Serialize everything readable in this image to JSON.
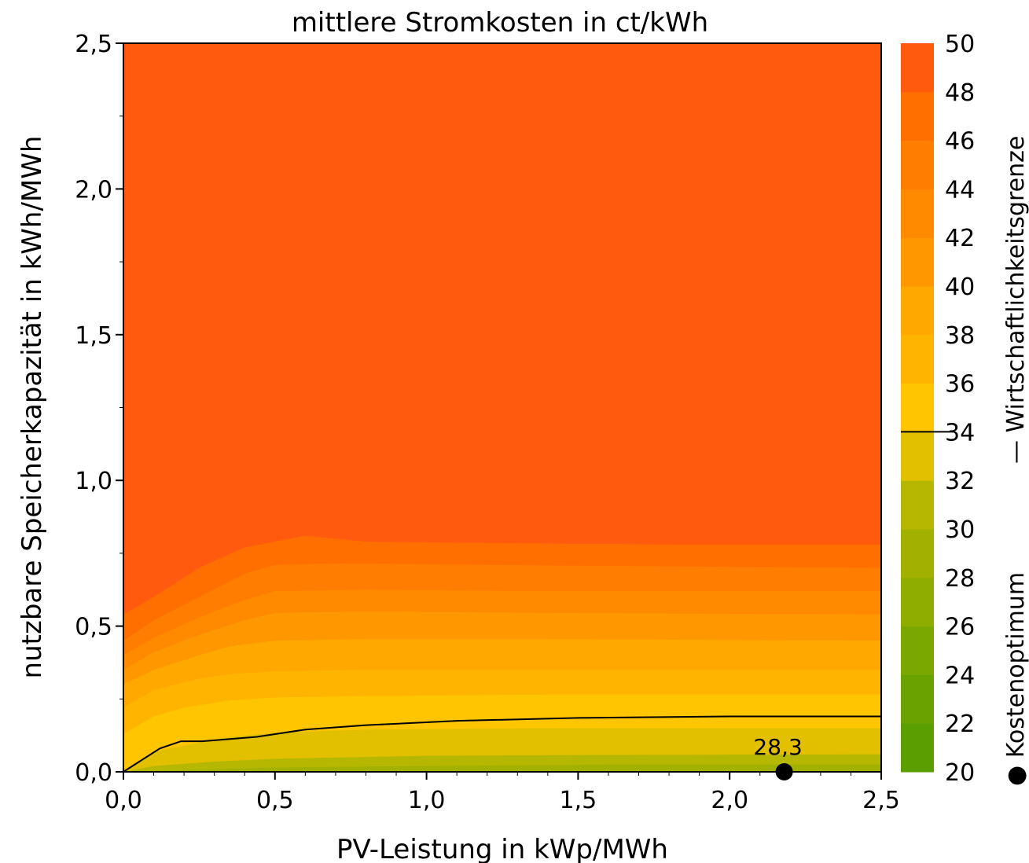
{
  "chart_data": {
    "type": "heatmap",
    "title": "mittlere Stromkosten in ct/kWh",
    "xlabel": "PV-Leistung in kWp/MWh",
    "ylabel": "nutzbare Speicherkapazität in kWh/MWh",
    "xlim": [
      0,
      2.5
    ],
    "ylim": [
      0,
      2.5
    ],
    "x_ticks": [
      "0,0",
      "0,5",
      "1,0",
      "1,5",
      "2,0",
      "2,5"
    ],
    "y_ticks": [
      "0,0",
      "0,5",
      "1,0",
      "1,5",
      "2,0",
      "2,5"
    ],
    "colorbar": {
      "range": [
        20,
        50
      ],
      "ticks": [
        "20",
        "22",
        "24",
        "26",
        "28",
        "30",
        "32",
        "34",
        "36",
        "38",
        "40",
        "42",
        "44",
        "46",
        "48",
        "50"
      ],
      "levels": [
        {
          "from": 20,
          "to": 22,
          "color": "#5a9e00"
        },
        {
          "from": 22,
          "to": 24,
          "color": "#6aa300"
        },
        {
          "from": 24,
          "to": 26,
          "color": "#7ba800"
        },
        {
          "from": 26,
          "to": 28,
          "color": "#8fad00"
        },
        {
          "from": 28,
          "to": 30,
          "color": "#a2b100"
        },
        {
          "from": 30,
          "to": 32,
          "color": "#b5b700"
        },
        {
          "from": 32,
          "to": 34,
          "color": "#e2c000"
        },
        {
          "from": 34,
          "to": 36,
          "color": "#ffc500"
        },
        {
          "from": 36,
          "to": 38,
          "color": "#ffb500"
        },
        {
          "from": 38,
          "to": 40,
          "color": "#ffa800"
        },
        {
          "from": 40,
          "to": 42,
          "color": "#ff9800"
        },
        {
          "from": 42,
          "to": 44,
          "color": "#ff8a00"
        },
        {
          "from": 44,
          "to": 46,
          "color": "#ff7d00"
        },
        {
          "from": 46,
          "to": 48,
          "color": "#ff6f00"
        },
        {
          "from": 48,
          "to": 50,
          "color": "#ff5a0e"
        }
      ],
      "boundary_value": 34
    },
    "side_labels": {
      "boundary": "— Wirtschaftlichkeitsgrenze",
      "optimum": "● Kostenoptimum"
    },
    "contours": [
      {
        "color": "#ff6f00",
        "points": [
          [
            0,
            0.54
          ],
          [
            0.1,
            0.6
          ],
          [
            0.25,
            0.7
          ],
          [
            0.4,
            0.77
          ],
          [
            0.6,
            0.81
          ],
          [
            0.8,
            0.79
          ],
          [
            1.2,
            0.785
          ],
          [
            1.8,
            0.78
          ],
          [
            2.5,
            0.78
          ]
        ]
      },
      {
        "color": "#ff7d00",
        "points": [
          [
            0,
            0.45
          ],
          [
            0.1,
            0.52
          ],
          [
            0.25,
            0.6
          ],
          [
            0.4,
            0.68
          ],
          [
            0.5,
            0.71
          ],
          [
            0.7,
            0.715
          ],
          [
            1.2,
            0.71
          ],
          [
            1.8,
            0.705
          ],
          [
            2.5,
            0.7
          ]
        ]
      },
      {
        "color": "#ff8a00",
        "points": [
          [
            0,
            0.4
          ],
          [
            0.1,
            0.46
          ],
          [
            0.25,
            0.53
          ],
          [
            0.4,
            0.59
          ],
          [
            0.5,
            0.62
          ],
          [
            0.8,
            0.625
          ],
          [
            1.4,
            0.62
          ],
          [
            2.5,
            0.62
          ]
        ]
      },
      {
        "color": "#ff9800",
        "points": [
          [
            0,
            0.35
          ],
          [
            0.1,
            0.41
          ],
          [
            0.25,
            0.47
          ],
          [
            0.4,
            0.52
          ],
          [
            0.5,
            0.545
          ],
          [
            0.8,
            0.55
          ],
          [
            1.4,
            0.545
          ],
          [
            2.5,
            0.54
          ]
        ]
      },
      {
        "color": "#ffa800",
        "points": [
          [
            0,
            0.3
          ],
          [
            0.1,
            0.35
          ],
          [
            0.25,
            0.4
          ],
          [
            0.35,
            0.43
          ],
          [
            0.5,
            0.45
          ],
          [
            0.8,
            0.455
          ],
          [
            1.4,
            0.455
          ],
          [
            2.5,
            0.45
          ]
        ]
      },
      {
        "color": "#ffb500",
        "points": [
          [
            0,
            0.22
          ],
          [
            0.1,
            0.28
          ],
          [
            0.25,
            0.32
          ],
          [
            0.35,
            0.335
          ],
          [
            0.5,
            0.345
          ],
          [
            0.8,
            0.35
          ],
          [
            1.4,
            0.35
          ],
          [
            2.5,
            0.35
          ]
        ]
      },
      {
        "color": "#ffc500",
        "points": [
          [
            0,
            0.13
          ],
          [
            0.1,
            0.19
          ],
          [
            0.2,
            0.22
          ],
          [
            0.35,
            0.245
          ],
          [
            0.5,
            0.255
          ],
          [
            0.8,
            0.26
          ],
          [
            1.4,
            0.265
          ],
          [
            2.5,
            0.265
          ]
        ]
      },
      {
        "color": "#e2c000",
        "points": [
          [
            0,
            0
          ],
          [
            0.1,
            0.07
          ],
          [
            0.2,
            0.09
          ],
          [
            0.35,
            0.12
          ],
          [
            0.5,
            0.135
          ],
          [
            0.8,
            0.145
          ],
          [
            1.4,
            0.15
          ],
          [
            2.5,
            0.15
          ]
        ]
      },
      {
        "color": "#b5b700",
        "points": [
          [
            0,
            0
          ],
          [
            0.1,
            0.02
          ],
          [
            0.3,
            0.035
          ],
          [
            0.5,
            0.045
          ],
          [
            1.0,
            0.055
          ],
          [
            1.6,
            0.058
          ],
          [
            2.5,
            0.06
          ]
        ]
      },
      {
        "color": "#a2b100",
        "points": [
          [
            0,
            0
          ],
          [
            0.5,
            0.015
          ],
          [
            1.0,
            0.02
          ],
          [
            1.6,
            0.025
          ],
          [
            2.5,
            0.025
          ]
        ]
      }
    ],
    "boundary_line": [
      [
        0,
        0
      ],
      [
        0.12,
        0.08
      ],
      [
        0.19,
        0.105
      ],
      [
        0.26,
        0.105
      ],
      [
        0.44,
        0.12
      ],
      [
        0.6,
        0.145
      ],
      [
        0.8,
        0.16
      ],
      [
        1.1,
        0.175
      ],
      [
        1.5,
        0.185
      ],
      [
        2.0,
        0.19
      ],
      [
        2.5,
        0.19
      ]
    ],
    "optimum": {
      "x": 2.18,
      "y": 0.0,
      "label": "28,3"
    }
  }
}
